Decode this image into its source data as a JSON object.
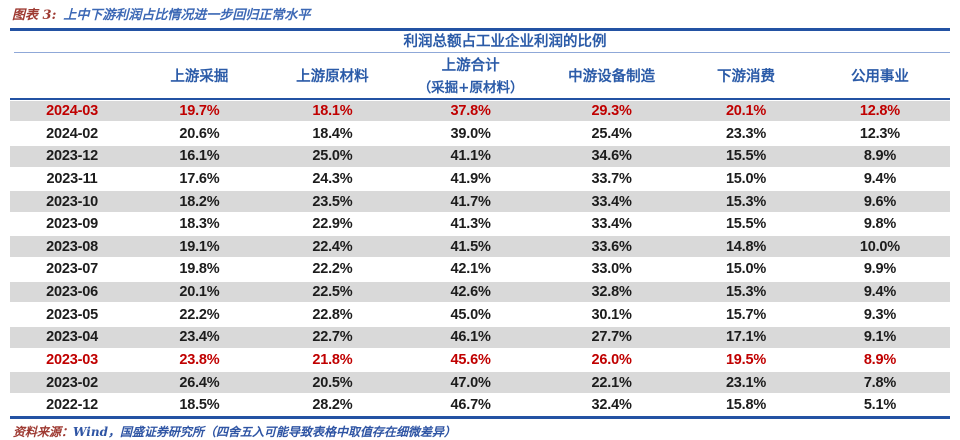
{
  "caption": {
    "label": "图表 3:",
    "text": "上中下游利润占比情况进一步回归正常水平"
  },
  "table": {
    "spanning_header": "利润总额占工业企业利润的比例",
    "columns": [
      {
        "label": "上游采掘"
      },
      {
        "label": "上游原材料"
      },
      {
        "label": "上游合计",
        "sublabel": "（采掘+原材料）"
      },
      {
        "label": "中游设备制造"
      },
      {
        "label": "下游消费"
      },
      {
        "label": "公用事业"
      }
    ],
    "rows": [
      {
        "date": "2024-03",
        "values": [
          "19.7%",
          "18.1%",
          "37.8%",
          "29.3%",
          "20.1%",
          "12.8%"
        ],
        "shaded": true,
        "highlight": true
      },
      {
        "date": "2024-02",
        "values": [
          "20.6%",
          "18.4%",
          "39.0%",
          "25.4%",
          "23.3%",
          "12.3%"
        ],
        "shaded": false,
        "highlight": false
      },
      {
        "date": "2023-12",
        "values": [
          "16.1%",
          "25.0%",
          "41.1%",
          "34.6%",
          "15.5%",
          "8.9%"
        ],
        "shaded": true,
        "highlight": false
      },
      {
        "date": "2023-11",
        "values": [
          "17.6%",
          "24.3%",
          "41.9%",
          "33.7%",
          "15.0%",
          "9.4%"
        ],
        "shaded": false,
        "highlight": false
      },
      {
        "date": "2023-10",
        "values": [
          "18.2%",
          "23.5%",
          "41.7%",
          "33.4%",
          "15.3%",
          "9.6%"
        ],
        "shaded": true,
        "highlight": false
      },
      {
        "date": "2023-09",
        "values": [
          "18.3%",
          "22.9%",
          "41.3%",
          "33.4%",
          "15.5%",
          "9.8%"
        ],
        "shaded": false,
        "highlight": false
      },
      {
        "date": "2023-08",
        "values": [
          "19.1%",
          "22.4%",
          "41.5%",
          "33.6%",
          "14.8%",
          "10.0%"
        ],
        "shaded": true,
        "highlight": false
      },
      {
        "date": "2023-07",
        "values": [
          "19.8%",
          "22.2%",
          "42.1%",
          "33.0%",
          "15.0%",
          "9.9%"
        ],
        "shaded": false,
        "highlight": false
      },
      {
        "date": "2023-06",
        "values": [
          "20.1%",
          "22.5%",
          "42.6%",
          "32.8%",
          "15.3%",
          "9.4%"
        ],
        "shaded": true,
        "highlight": false
      },
      {
        "date": "2023-05",
        "values": [
          "22.2%",
          "22.8%",
          "45.0%",
          "30.1%",
          "15.7%",
          "9.3%"
        ],
        "shaded": false,
        "highlight": false
      },
      {
        "date": "2023-04",
        "values": [
          "23.4%",
          "22.7%",
          "46.1%",
          "27.7%",
          "17.1%",
          "9.1%"
        ],
        "shaded": true,
        "highlight": false
      },
      {
        "date": "2023-03",
        "values": [
          "23.8%",
          "21.8%",
          "45.6%",
          "26.0%",
          "19.5%",
          "8.9%"
        ],
        "shaded": false,
        "highlight": true
      },
      {
        "date": "2023-02",
        "values": [
          "26.4%",
          "20.5%",
          "47.0%",
          "22.1%",
          "23.1%",
          "7.8%"
        ],
        "shaded": true,
        "highlight": false
      },
      {
        "date": "2022-12",
        "values": [
          "18.5%",
          "28.2%",
          "46.7%",
          "32.4%",
          "15.8%",
          "5.1%"
        ],
        "shaded": false,
        "highlight": false
      }
    ]
  },
  "footer": {
    "label": "资料来源：",
    "text": "Wind，国盛证券研究所（四舍五入可能导致表格中取值存在细微差异）"
  },
  "colors": {
    "accent_blue_line": "#2352a3",
    "header_blue_text": "#2b5ba8",
    "caption_maroon": "#9e3a32",
    "caption_blue": "#3c68b5",
    "highlight_red": "#c00000",
    "row_shade_gray": "#d9d9d9"
  }
}
